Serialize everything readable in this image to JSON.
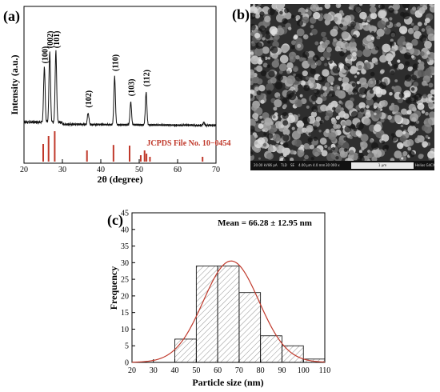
{
  "panel_labels": {
    "a": "(a)",
    "b": "(b)",
    "c": "(c)"
  },
  "colors": {
    "xrd_line": "#111111",
    "reference_bars": "#c0392b",
    "reference_text": "#c0392b",
    "fit_curve": "#c0392b",
    "bar_hatch": "#777777"
  },
  "sem": {
    "info_row": [
      "HV",
      "curr",
      "det",
      "mode",
      "HFW",
      "WD",
      "mag",
      "⊞"
    ],
    "info_values": [
      "20.00 kV",
      "86 pA",
      "TLD",
      "SE",
      "4.00 μm",
      "4.0 mm",
      "30 000 x"
    ],
    "scale_label": "1 μm",
    "instrument": "Helios G4CX"
  },
  "chart_data": [
    {
      "type": "line",
      "panel": "a",
      "xlabel": "2θ (degree)",
      "ylabel": "Intensity (a.u.)",
      "xlim": [
        20,
        70
      ],
      "xticks": [
        "20",
        "30",
        "40",
        "50",
        "60",
        "70"
      ],
      "grid": false,
      "baseline": 40,
      "peaks": [
        {
          "label": "(100)",
          "x": 25.3,
          "height": 58
        },
        {
          "label": "(002)",
          "x": 26.7,
          "height": 74
        },
        {
          "label": "(101)",
          "x": 28.3,
          "height": 74
        },
        {
          "label": "(102)",
          "x": 36.7,
          "height": 12
        },
        {
          "label": "(110)",
          "x": 43.6,
          "height": 50
        },
        {
          "label": "(103)",
          "x": 47.8,
          "height": 24
        },
        {
          "label": "(112)",
          "x": 51.8,
          "height": 34
        }
      ],
      "reference": {
        "label": "JCPDS File No. 10−0454",
        "lines": [
          {
            "x": 25.0,
            "height": 0.55
          },
          {
            "x": 26.4,
            "height": 0.8
          },
          {
            "x": 28.0,
            "height": 0.95
          },
          {
            "x": 36.4,
            "height": 0.35
          },
          {
            "x": 43.3,
            "height": 0.52
          },
          {
            "x": 47.5,
            "height": 0.5
          },
          {
            "x": 50.4,
            "height": 0.2
          },
          {
            "x": 51.4,
            "height": 0.35
          },
          {
            "x": 51.9,
            "height": 0.25
          },
          {
            "x": 52.8,
            "height": 0.15
          },
          {
            "x": 66.5,
            "height": 0.15
          }
        ]
      }
    },
    {
      "type": "bar",
      "panel": "c",
      "xlabel": "Particle size (nm)",
      "ylabel": "Frequency",
      "annotation": "Mean = 66.28 ± 12.95 nm",
      "xlim": [
        20,
        110
      ],
      "ylim": [
        0,
        45
      ],
      "xticks": [
        "20",
        "30",
        "40",
        "50",
        "60",
        "70",
        "80",
        "90",
        "100",
        "110"
      ],
      "yticks": [
        "0",
        "5",
        "10",
        "15",
        "20",
        "25",
        "30",
        "35",
        "40",
        "45"
      ],
      "bins": [
        {
          "start": 40,
          "end": 50,
          "value": 7
        },
        {
          "start": 50,
          "end": 60,
          "value": 29
        },
        {
          "start": 60,
          "end": 70,
          "value": 29
        },
        {
          "start": 70,
          "end": 80,
          "value": 21
        },
        {
          "start": 80,
          "end": 90,
          "value": 8
        },
        {
          "start": 90,
          "end": 100,
          "value": 5
        },
        {
          "start": 100,
          "end": 110,
          "value": 1
        }
      ],
      "fit": {
        "type": "gaussian",
        "mean": 66.28,
        "sd": 12.95,
        "peak": 30.5
      }
    }
  ]
}
